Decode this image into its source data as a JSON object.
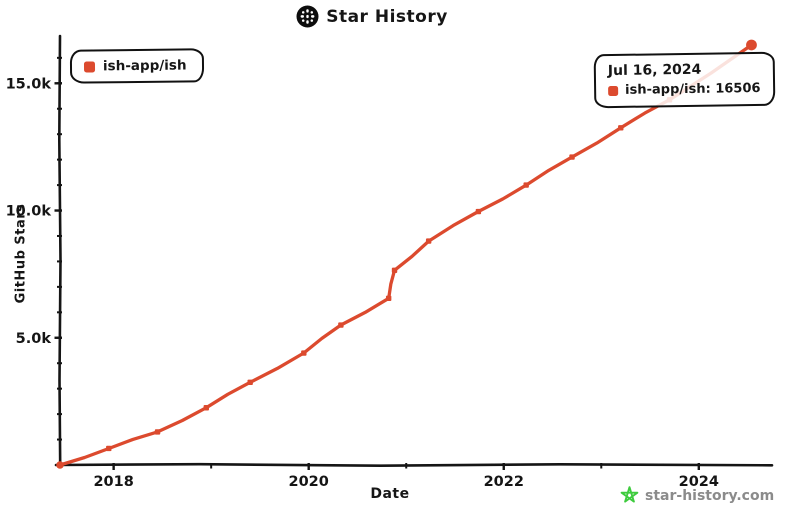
{
  "app": {
    "title": "Star History",
    "logo_icon": "star-history-logo"
  },
  "legend": {
    "items": [
      {
        "label": "ish-app/ish",
        "color": "#dc4a2e"
      }
    ]
  },
  "tooltip": {
    "date": "Jul 16, 2024",
    "entries": [
      {
        "label": "ish-app/ish: 16506",
        "color": "#dc4a2e"
      }
    ]
  },
  "watermark": {
    "text": "star-history.com",
    "icon": "green-star-icon",
    "icon_color": "#3ecb3e",
    "text_color": "#8b8b8b"
  },
  "colors": {
    "axis": "#151515",
    "background": "#ffffff"
  },
  "chart_data": {
    "type": "line",
    "title": "Star History",
    "xlabel": "Date",
    "ylabel": "GitHub Stars",
    "grid": false,
    "legend_position": "top-left",
    "xlim": [
      2017.45,
      2024.73
    ],
    "ylim": [
      0,
      16780
    ],
    "x_ticks": [
      {
        "value": 2018,
        "label": "2018"
      },
      {
        "value": 2020,
        "label": "2020"
      },
      {
        "value": 2022,
        "label": "2022"
      },
      {
        "value": 2024,
        "label": "2024"
      }
    ],
    "x_minor_ticks": [
      2019,
      2021,
      2023
    ],
    "y_ticks": [
      {
        "value": 5000,
        "label": "5.0k"
      },
      {
        "value": 10000,
        "label": "10.0k"
      },
      {
        "value": 15000,
        "label": "15.0k"
      }
    ],
    "y_minor_step": 1000,
    "series": [
      {
        "name": "ish-app/ish",
        "color": "#dc4a2e",
        "points": [
          [
            2017.45,
            0
          ],
          [
            2017.95,
            650
          ],
          [
            2018.45,
            1300
          ],
          [
            2018.95,
            2250
          ],
          [
            2019.4,
            3250
          ],
          [
            2019.95,
            4400
          ],
          [
            2020.33,
            5500
          ],
          [
            2020.82,
            6550
          ],
          [
            2020.88,
            7650
          ],
          [
            2021.23,
            8800
          ],
          [
            2021.74,
            9960
          ],
          [
            2022.23,
            11000
          ],
          [
            2022.7,
            12100
          ],
          [
            2023.2,
            13250
          ],
          [
            2023.7,
            14350
          ],
          [
            2024.54,
            16506
          ]
        ],
        "highlighted_point": {
          "date": "Jul 16, 2024",
          "value": 16506
        }
      }
    ]
  }
}
